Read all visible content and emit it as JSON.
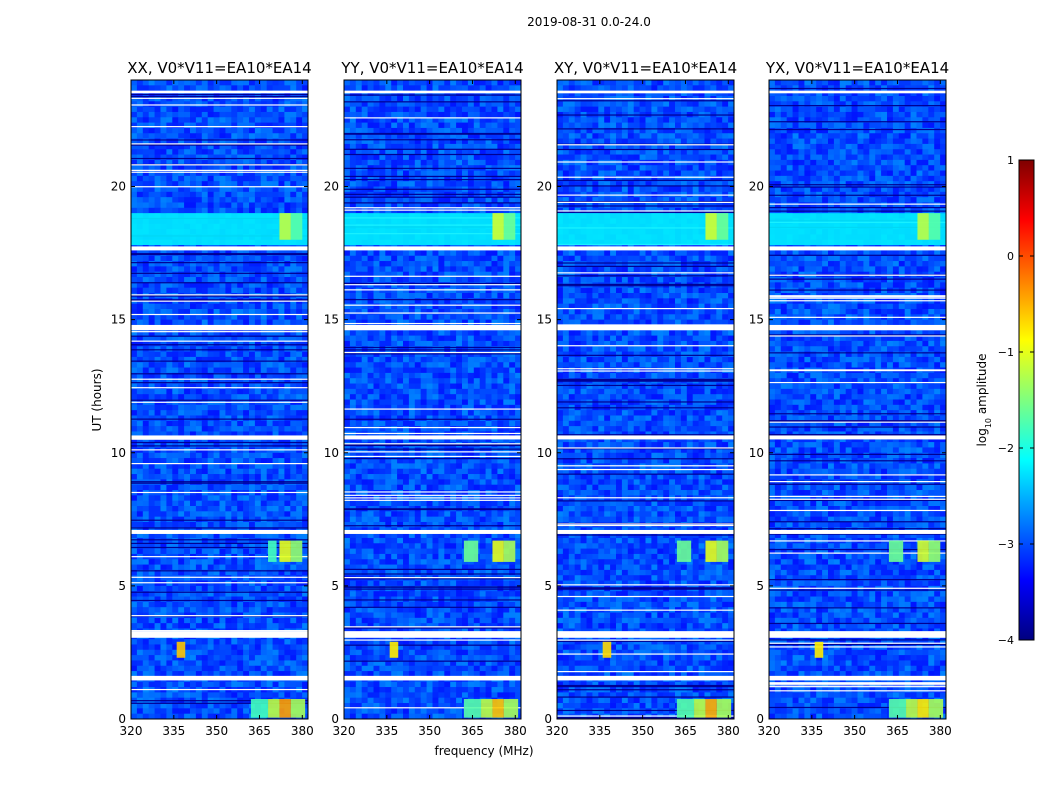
{
  "figure": {
    "suptitle": "2019-08-31 0.0-24.0",
    "xlabel": "frequency (MHz)",
    "ylabel": "UT (hours)"
  },
  "colors": {
    "colormap": [
      "#00007f",
      "#0000ff",
      "#007fff",
      "#00ffff",
      "#7fff7f",
      "#ffff00",
      "#ff7f00",
      "#ff0000",
      "#7f0000"
    ],
    "blank_row": "#ffffff",
    "axis": "#000000"
  },
  "colorbar": {
    "label_html": "log<tspan baseline-shift=\"sub\" font-size=\"8\">10</tspan> amplitude",
    "label_text": "log10 amplitude",
    "range": [
      -4,
      1
    ],
    "ticks": [
      1,
      0,
      -1,
      -2,
      -3,
      -4
    ],
    "tick_labels": [
      "1",
      "0",
      "−1",
      "−2",
      "−3",
      "−4"
    ]
  },
  "chart_data": [
    {
      "type": "heatmap",
      "title": "XX, V0*V11=EA10*EA14",
      "xlim": [
        320,
        382
      ],
      "ylim": [
        0,
        24
      ],
      "xticks": [
        320,
        335,
        350,
        365,
        380
      ],
      "yticks": [
        0,
        5,
        10,
        15,
        20
      ],
      "zlim_log10": [
        -4,
        1
      ],
      "background_log10": -3.0,
      "blank_ut_ranges": [
        [
          1.45,
          1.62
        ],
        [
          3.05,
          3.3
        ],
        [
          6.95,
          7.1
        ],
        [
          10.5,
          10.65
        ],
        [
          14.6,
          14.8
        ],
        [
          17.6,
          17.75
        ],
        [
          23.5,
          23.6
        ]
      ],
      "features": [
        {
          "f": [
            368,
            372
          ],
          "t": [
            0.05,
            0.75
          ],
          "log10": -1.2
        },
        {
          "f": [
            372,
            376
          ],
          "t": [
            0.05,
            0.75
          ],
          "log10": -0.4
        },
        {
          "f": [
            376,
            381
          ],
          "t": [
            0.05,
            0.75
          ],
          "log10": -1.3
        },
        {
          "f": [
            362,
            368
          ],
          "t": [
            0.05,
            0.75
          ],
          "log10": -1.8
        },
        {
          "f": [
            336,
            339
          ],
          "t": [
            2.3,
            2.9
          ],
          "log10": -0.6
        },
        {
          "f": [
            372,
            376
          ],
          "t": [
            5.9,
            6.7
          ],
          "log10": -1.0
        },
        {
          "f": [
            376,
            380
          ],
          "t": [
            5.9,
            6.7
          ],
          "log10": -1.4
        },
        {
          "f": [
            368,
            371
          ],
          "t": [
            5.9,
            6.7
          ],
          "log10": -1.8
        },
        {
          "f": [
            320,
            382
          ],
          "t": [
            17.8,
            19.0
          ],
          "log10": -2.2
        },
        {
          "f": [
            372,
            376
          ],
          "t": [
            18.0,
            19.0
          ],
          "log10": -1.2
        },
        {
          "f": [
            376,
            380
          ],
          "t": [
            18.0,
            19.0
          ],
          "log10": -1.7
        }
      ]
    },
    {
      "type": "heatmap",
      "title": "YY, V0*V11=EA10*EA14",
      "xlim": [
        320,
        382
      ],
      "ylim": [
        0,
        24
      ],
      "xticks": [
        320,
        335,
        350,
        365,
        380
      ],
      "yticks": [
        0,
        5,
        10,
        15,
        20
      ],
      "zlim_log10": [
        -4,
        1
      ],
      "background_log10": -3.0,
      "blank_ut_ranges": [
        [
          1.45,
          1.62
        ],
        [
          3.05,
          3.3
        ],
        [
          6.95,
          7.1
        ],
        [
          10.5,
          10.65
        ],
        [
          14.6,
          14.8
        ],
        [
          17.6,
          17.75
        ],
        [
          23.5,
          23.6
        ]
      ],
      "features": [
        {
          "f": [
            368,
            372
          ],
          "t": [
            0.05,
            0.75
          ],
          "log10": -1.2
        },
        {
          "f": [
            372,
            376
          ],
          "t": [
            0.05,
            0.75
          ],
          "log10": -0.6
        },
        {
          "f": [
            376,
            381
          ],
          "t": [
            0.05,
            0.75
          ],
          "log10": -1.3
        },
        {
          "f": [
            362,
            368
          ],
          "t": [
            0.05,
            0.75
          ],
          "log10": -1.7
        },
        {
          "f": [
            336,
            339
          ],
          "t": [
            2.3,
            2.9
          ],
          "log10": -0.8
        },
        {
          "f": [
            372,
            376
          ],
          "t": [
            5.9,
            6.7
          ],
          "log10": -1.0
        },
        {
          "f": [
            376,
            380
          ],
          "t": [
            5.9,
            6.7
          ],
          "log10": -1.3
        },
        {
          "f": [
            362,
            367
          ],
          "t": [
            5.9,
            6.7
          ],
          "log10": -1.6
        },
        {
          "f": [
            320,
            382
          ],
          "t": [
            17.8,
            19.0
          ],
          "log10": -2.2
        },
        {
          "f": [
            372,
            376
          ],
          "t": [
            18.0,
            19.0
          ],
          "log10": -1.1
        },
        {
          "f": [
            376,
            380
          ],
          "t": [
            18.0,
            19.0
          ],
          "log10": -1.6
        }
      ]
    },
    {
      "type": "heatmap",
      "title": "XY, V0*V11=EA10*EA14",
      "xlim": [
        320,
        382
      ],
      "ylim": [
        0,
        24
      ],
      "xticks": [
        320,
        335,
        350,
        365,
        380
      ],
      "yticks": [
        0,
        5,
        10,
        15,
        20
      ],
      "zlim_log10": [
        -4,
        1
      ],
      "background_log10": -3.0,
      "blank_ut_ranges": [
        [
          1.45,
          1.62
        ],
        [
          3.05,
          3.3
        ],
        [
          6.95,
          7.1
        ],
        [
          10.5,
          10.65
        ],
        [
          14.6,
          14.8
        ],
        [
          17.6,
          17.75
        ],
        [
          23.5,
          23.6
        ]
      ],
      "features": [
        {
          "f": [
            368,
            372
          ],
          "t": [
            0.05,
            0.75
          ],
          "log10": -1.2
        },
        {
          "f": [
            372,
            376
          ],
          "t": [
            0.05,
            0.75
          ],
          "log10": -0.5
        },
        {
          "f": [
            376,
            381
          ],
          "t": [
            0.05,
            0.75
          ],
          "log10": -1.3
        },
        {
          "f": [
            362,
            368
          ],
          "t": [
            0.05,
            0.75
          ],
          "log10": -1.7
        },
        {
          "f": [
            336,
            339
          ],
          "t": [
            2.3,
            2.9
          ],
          "log10": -0.7
        },
        {
          "f": [
            372,
            376
          ],
          "t": [
            5.9,
            6.7
          ],
          "log10": -1.0
        },
        {
          "f": [
            376,
            380
          ],
          "t": [
            5.9,
            6.7
          ],
          "log10": -1.3
        },
        {
          "f": [
            362,
            367
          ],
          "t": [
            5.9,
            6.7
          ],
          "log10": -1.6
        },
        {
          "f": [
            320,
            382
          ],
          "t": [
            17.8,
            19.0
          ],
          "log10": -2.2
        },
        {
          "f": [
            372,
            376
          ],
          "t": [
            18.0,
            19.0
          ],
          "log10": -1.1
        },
        {
          "f": [
            376,
            380
          ],
          "t": [
            18.0,
            19.0
          ],
          "log10": -1.6
        }
      ]
    },
    {
      "type": "heatmap",
      "title": "YX, V0*V11=EA10*EA14",
      "xlim": [
        320,
        382
      ],
      "ylim": [
        0,
        24
      ],
      "xticks": [
        320,
        335,
        350,
        365,
        380
      ],
      "yticks": [
        0,
        5,
        10,
        15,
        20
      ],
      "zlim_log10": [
        -4,
        1
      ],
      "background_log10": -3.0,
      "blank_ut_ranges": [
        [
          1.45,
          1.62
        ],
        [
          3.05,
          3.3
        ],
        [
          6.95,
          7.1
        ],
        [
          10.5,
          10.65
        ],
        [
          14.6,
          14.8
        ],
        [
          17.6,
          17.75
        ],
        [
          23.5,
          23.6
        ]
      ],
      "features": [
        {
          "f": [
            368,
            372
          ],
          "t": [
            0.05,
            0.75
          ],
          "log10": -1.2
        },
        {
          "f": [
            372,
            376
          ],
          "t": [
            0.05,
            0.75
          ],
          "log10": -0.8
        },
        {
          "f": [
            376,
            381
          ],
          "t": [
            0.05,
            0.75
          ],
          "log10": -1.3
        },
        {
          "f": [
            362,
            368
          ],
          "t": [
            0.05,
            0.75
          ],
          "log10": -1.7
        },
        {
          "f": [
            336,
            339
          ],
          "t": [
            2.3,
            2.9
          ],
          "log10": -0.8
        },
        {
          "f": [
            372,
            376
          ],
          "t": [
            5.9,
            6.7
          ],
          "log10": -1.1
        },
        {
          "f": [
            376,
            380
          ],
          "t": [
            5.9,
            6.7
          ],
          "log10": -1.4
        },
        {
          "f": [
            362,
            367
          ],
          "t": [
            5.9,
            6.7
          ],
          "log10": -1.6
        },
        {
          "f": [
            320,
            382
          ],
          "t": [
            17.8,
            19.0
          ],
          "log10": -2.2
        },
        {
          "f": [
            372,
            376
          ],
          "t": [
            18.0,
            19.0
          ],
          "log10": -1.2
        },
        {
          "f": [
            376,
            380
          ],
          "t": [
            18.0,
            19.0
          ],
          "log10": -1.7
        }
      ]
    }
  ]
}
